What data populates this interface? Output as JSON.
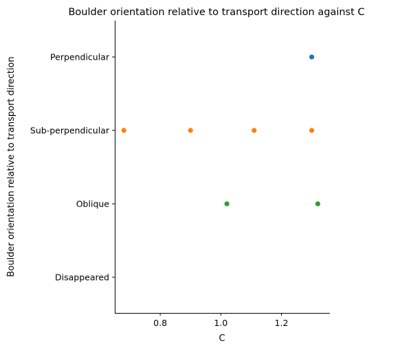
{
  "chart_data": {
    "type": "scatter",
    "title": "Boulder orientation relative to transport direction against C",
    "xlabel": "C",
    "ylabel": "Boulder orientation relative to transport direction",
    "xlim": [
      0.65,
      1.36
    ],
    "x_ticks": [
      0.8,
      1.0,
      1.2
    ],
    "x_tick_labels": [
      "0.8",
      "1.0",
      "1.2"
    ],
    "categories": [
      "Perpendicular",
      "Sub-perpendicular",
      "Oblique",
      "Disappeared"
    ],
    "grid": false,
    "legend": "none",
    "series": [
      {
        "color": "#1f77b4",
        "points": [
          {
            "x": 1.3,
            "y": "Perpendicular"
          }
        ]
      },
      {
        "color": "#ff7f0e",
        "points": [
          {
            "x": 0.68,
            "y": "Sub-perpendicular"
          },
          {
            "x": 0.9,
            "y": "Sub-perpendicular"
          },
          {
            "x": 1.11,
            "y": "Sub-perpendicular"
          },
          {
            "x": 1.3,
            "y": "Sub-perpendicular"
          }
        ]
      },
      {
        "color": "#2ca02c",
        "points": [
          {
            "x": 1.02,
            "y": "Oblique"
          },
          {
            "x": 1.32,
            "y": "Oblique"
          }
        ]
      }
    ]
  }
}
